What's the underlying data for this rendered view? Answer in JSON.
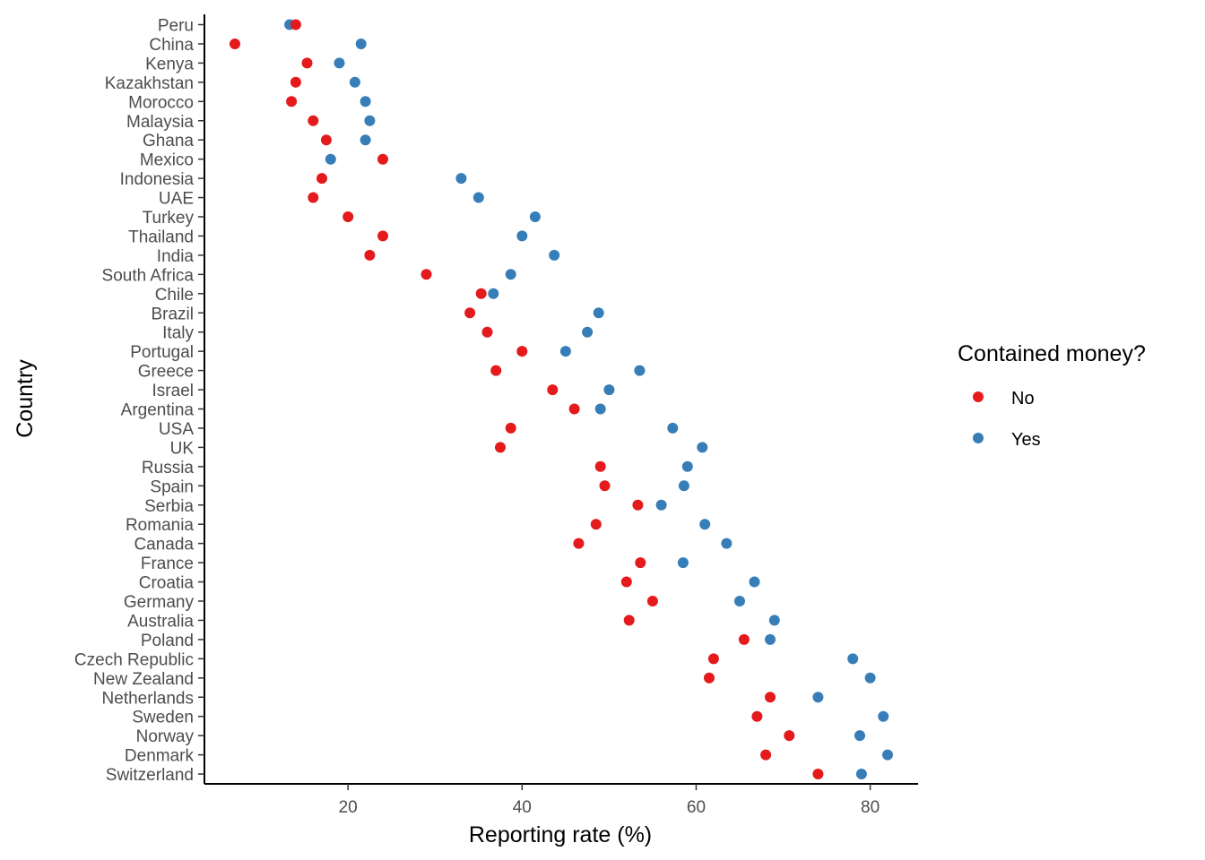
{
  "chart_data": {
    "type": "scatter",
    "title": "",
    "xlabel": "Reporting rate (%)",
    "ylabel": "Country",
    "xlim": [
      3.5,
      85.5
    ],
    "xticks": [
      20,
      40,
      60,
      80
    ],
    "grid": false,
    "legend": {
      "title": "Contained money?",
      "placement": "right"
    },
    "categories": [
      "Peru",
      "China",
      "Kenya",
      "Kazakhstan",
      "Morocco",
      "Malaysia",
      "Ghana",
      "Mexico",
      "Indonesia",
      "UAE",
      "Turkey",
      "Thailand",
      "India",
      "South Africa",
      "Chile",
      "Brazil",
      "Italy",
      "Portugal",
      "Greece",
      "Israel",
      "Argentina",
      "USA",
      "UK",
      "Russia",
      "Spain",
      "Serbia",
      "Romania",
      "Canada",
      "France",
      "Croatia",
      "Germany",
      "Australia",
      "Poland",
      "Czech Republic",
      "New Zealand",
      "Netherlands",
      "Sweden",
      "Norway",
      "Denmark",
      "Switzerland"
    ],
    "series": [
      {
        "name": "No",
        "color": "#e41a1c",
        "values": [
          14.0,
          7.0,
          15.3,
          14.0,
          13.5,
          16.0,
          17.5,
          24.0,
          17.0,
          16.0,
          20.0,
          24.0,
          22.5,
          29.0,
          35.3,
          34.0,
          36.0,
          40.0,
          37.0,
          43.5,
          46.0,
          38.7,
          37.5,
          49.0,
          49.5,
          53.3,
          48.5,
          46.5,
          53.6,
          52.0,
          55.0,
          52.3,
          65.5,
          62.0,
          61.5,
          68.5,
          67.0,
          70.7,
          68.0,
          74.0
        ]
      },
      {
        "name": "Yes",
        "color": "#377eb8",
        "values": [
          13.3,
          21.5,
          19.0,
          20.8,
          22.0,
          22.5,
          22.0,
          18.0,
          33.0,
          35.0,
          41.5,
          40.0,
          43.7,
          38.7,
          36.7,
          48.8,
          47.5,
          45.0,
          53.5,
          50.0,
          49.0,
          57.3,
          60.7,
          59.0,
          58.6,
          56.0,
          61.0,
          63.5,
          58.5,
          66.7,
          65.0,
          69.0,
          68.5,
          78.0,
          80.0,
          74.0,
          81.5,
          78.8,
          82.0,
          79.0
        ]
      }
    ]
  }
}
